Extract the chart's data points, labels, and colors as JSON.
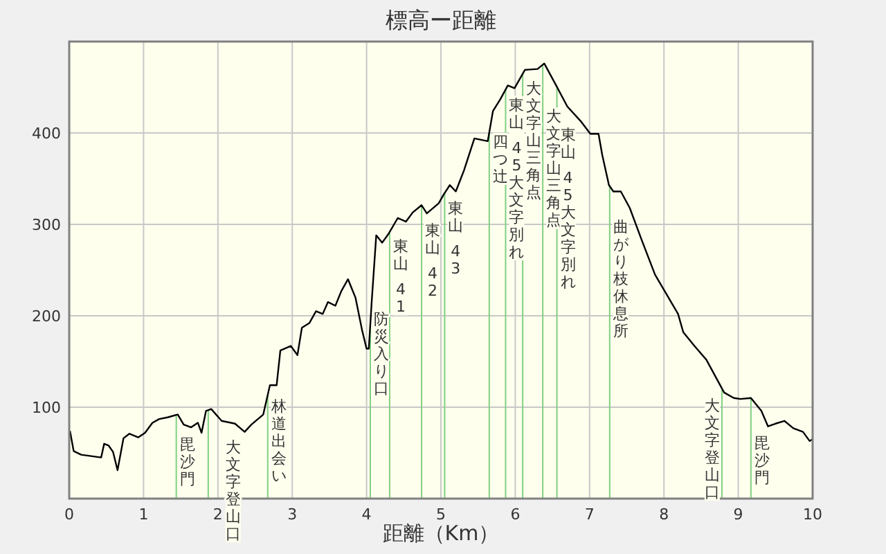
{
  "chart_data": {
    "type": "line",
    "title": "標高ー距離",
    "xlabel": "距離（Km）",
    "color": "#000000",
    "x": [
      0.01,
      0.06,
      0.16,
      0.43,
      0.47,
      0.53,
      0.59,
      0.65,
      0.73,
      0.81,
      0.93,
      1.02,
      1.12,
      1.21,
      1.33,
      1.46,
      1.54,
      1.64,
      1.73,
      1.78,
      1.84,
      1.91,
      2.05,
      2.23,
      2.36,
      2.45,
      2.61,
      2.7,
      2.79,
      2.84,
      2.98,
      3.07,
      3.13,
      3.23,
      3.32,
      3.41,
      3.48,
      3.58,
      3.66,
      3.75,
      3.85,
      3.94,
      4.0,
      4.03,
      4.07,
      4.13,
      4.21,
      4.29,
      4.42,
      4.53,
      4.62,
      4.74,
      4.81,
      4.97,
      5.04,
      5.12,
      5.2,
      5.31,
      5.45,
      5.63,
      5.7,
      5.8,
      5.9,
      5.99,
      6.13,
      6.3,
      6.39,
      6.55,
      6.7,
      6.89,
      7.01,
      7.12,
      7.17,
      7.26,
      7.32,
      7.42,
      7.54,
      7.7,
      7.88,
      8.01,
      8.19,
      8.26,
      8.41,
      8.57,
      8.69,
      8.81,
      8.94,
      9.03,
      9.17,
      9.31,
      9.4,
      9.5,
      9.62,
      9.74,
      9.87,
      9.96,
      10.0
    ],
    "values": [
      74,
      52,
      48,
      45,
      60,
      58,
      51,
      31,
      66,
      71,
      67,
      72,
      83,
      87,
      89,
      92,
      81,
      78,
      83,
      72,
      96,
      98,
      85,
      82,
      73,
      81,
      92,
      124,
      124,
      162,
      167,
      157,
      187,
      192,
      205,
      202,
      215,
      211,
      227,
      240,
      220,
      184,
      164,
      164,
      217,
      288,
      280,
      289,
      307,
      303,
      313,
      321,
      312,
      323,
      333,
      343,
      336,
      359,
      394,
      391,
      424,
      437,
      452,
      449,
      469,
      470,
      476,
      452,
      429,
      412,
      399,
      399,
      376,
      343,
      336,
      336,
      318,
      283,
      245,
      227,
      202,
      182,
      167,
      152,
      134,
      116,
      110,
      109,
      110,
      96,
      79,
      82,
      85,
      77,
      73,
      63,
      65
    ],
    "xlim": [
      0,
      10
    ],
    "ylim": [
      0,
      500
    ],
    "xticks": [
      0,
      1,
      2,
      3,
      4,
      5,
      6,
      7,
      8,
      9,
      10
    ],
    "yticks": [
      100,
      200,
      300,
      400
    ],
    "grid": true,
    "ref_lines": [
      {
        "axis": "x",
        "value": 1.44,
        "label": "毘沙門",
        "color": "#80d080"
      },
      {
        "axis": "x",
        "value": 1.87,
        "label": "大文字登山口",
        "color": "#80d080"
      },
      {
        "axis": "x",
        "value": 2.67,
        "label": "林道出会い",
        "color": "#80d080"
      },
      {
        "axis": "x",
        "value": 4.05,
        "label": "防災入り口",
        "color": "#80d080"
      },
      {
        "axis": "x",
        "value": 4.31,
        "label": "東山 41",
        "color": "#80d080"
      },
      {
        "axis": "x",
        "value": 4.74,
        "label": "東山 42",
        "color": "#80d080"
      },
      {
        "axis": "x",
        "value": 5.05,
        "label": "東山 43",
        "color": "#80d080"
      },
      {
        "axis": "x",
        "value": 5.65,
        "label": "四つ辻",
        "color": "#80d080"
      },
      {
        "axis": "x",
        "value": 5.87,
        "label": "東山 45大文字別れ",
        "color": "#80d080"
      },
      {
        "axis": "x",
        "value": 6.1,
        "label": "大文字山三角点",
        "color": "#80d080"
      },
      {
        "axis": "x",
        "value": 6.37,
        "label": "大文字山三角点",
        "color": "#80d080"
      },
      {
        "axis": "x",
        "value": 6.56,
        "label": "東山 45大文字別れ",
        "color": "#80d080"
      },
      {
        "axis": "x",
        "value": 7.27,
        "label": "曲がり枝休息所",
        "color": "#80d080"
      },
      {
        "axis": "x",
        "value": 8.78,
        "label": "大文字登山口",
        "color": "#80d080"
      },
      {
        "axis": "x",
        "value": 9.17,
        "label": "毘沙門",
        "color": "#80d080"
      }
    ]
  }
}
